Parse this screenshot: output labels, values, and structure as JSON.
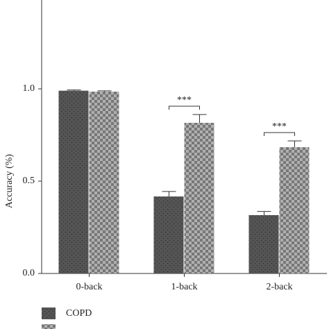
{
  "chart_data": {
    "type": "bar",
    "y_label": "Accuracy (%)",
    "categories": [
      "0-back",
      "1-back",
      "2-back"
    ],
    "series": [
      {
        "name": "COPD",
        "color": "#555555",
        "values": [
          0.99,
          0.417,
          0.316
        ],
        "errors": [
          0.004,
          0.027,
          0.02
        ]
      },
      {
        "color": "#8a8a8a",
        "values": [
          0.985,
          0.816,
          0.684
        ],
        "errors": [
          0.004,
          0.045,
          0.034
        ]
      }
    ],
    "annotations": [
      {
        "text": "***",
        "category": "1-back"
      },
      {
        "text": "***",
        "category": "2-back"
      }
    ],
    "ylim": [
      0,
      1.5
    ],
    "yticks": [
      0.0,
      0.5,
      1.0
    ],
    "ytick_labels": [
      "0.0",
      "0.5",
      "1.0"
    ]
  }
}
